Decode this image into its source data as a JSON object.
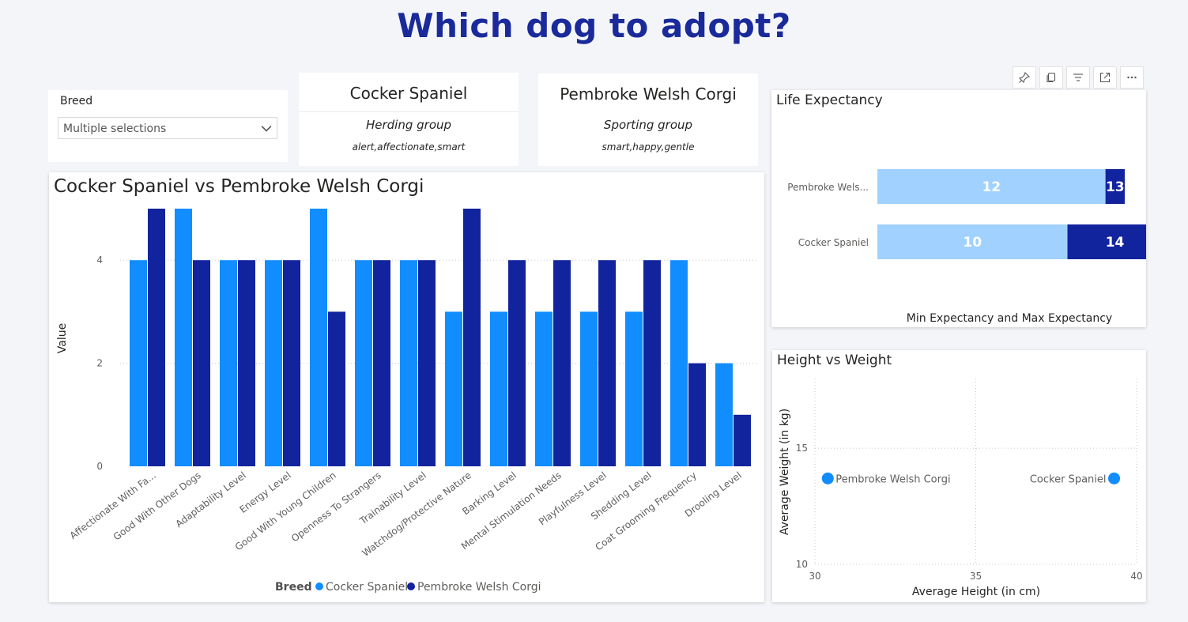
{
  "page": {
    "title": "Which dog to adopt?"
  },
  "slicer": {
    "label": "Breed",
    "value": "Multiple selections"
  },
  "breed_cards": [
    {
      "name": "Cocker Spaniel",
      "group": "Herding group",
      "traits": "alert,affectionate,smart"
    },
    {
      "name": "Pembroke Welsh Corgi",
      "group": "Sporting group",
      "traits": "smart,happy,gentle"
    }
  ],
  "toolbar": {
    "icons": [
      "pin-icon",
      "copy-icon",
      "filter-icon",
      "focus-mode-icon",
      "more-options-icon"
    ]
  },
  "colors": {
    "cocker": "#118dff",
    "corgi": "#12239e",
    "min_bar": "#a0d1ff",
    "max_bar": "#12239e",
    "title": "#1a2a9a"
  },
  "chart_data": [
    {
      "type": "bar",
      "title": "Cocker Spaniel vs Pembroke Welsh Corgi",
      "xlabel": "",
      "ylabel": "Value",
      "ylim": [
        0,
        5
      ],
      "yticks": [
        "0",
        "2",
        "4"
      ],
      "grid": true,
      "legend": {
        "title": "Breed",
        "placement": "bottom"
      },
      "categories": [
        "Affectionate With Fa...",
        "Good With Other Dogs",
        "Adaptability Level",
        "Energy Level",
        "Good With Young Children",
        "Openness To Strangers",
        "Trainability Level",
        "Watchdog/Protective Nature",
        "Barking Level",
        "Mental Stimulation Needs",
        "Playfulness Level",
        "Shedding Level",
        "Coat Grooming Frequency",
        "Drooling Level"
      ],
      "series": [
        {
          "name": "Cocker Spaniel",
          "values": [
            4,
            5,
            4,
            4,
            5,
            4,
            4,
            3,
            3,
            3,
            3,
            3,
            4,
            2
          ]
        },
        {
          "name": "Pembroke Welsh Corgi",
          "values": [
            5,
            4,
            4,
            4,
            3,
            4,
            4,
            5,
            4,
            4,
            4,
            4,
            2,
            1
          ]
        }
      ]
    },
    {
      "type": "bar",
      "orientation": "horizontal",
      "stacked": true,
      "title": "Life Expectancy",
      "xlabel": "Min Expectancy and Max Expectancy",
      "categories": [
        "Pembroke Wels...",
        "Cocker Spaniel"
      ],
      "series": [
        {
          "role": "min",
          "values": [
            12,
            10
          ],
          "labels": [
            "12",
            "10"
          ]
        },
        {
          "role": "max",
          "values": [
            13,
            14
          ],
          "labels": [
            "13",
            "14"
          ]
        }
      ]
    },
    {
      "type": "scatter",
      "title": "Height vs Weight",
      "xlabel": "Average Height (in cm)",
      "ylabel": "Average Weight (in kg)",
      "xlim": [
        30,
        40
      ],
      "ylim": [
        10,
        18
      ],
      "xticks": [
        "30",
        "35",
        "40"
      ],
      "yticks": [
        "10",
        "15"
      ],
      "grid": true,
      "points": [
        {
          "label": "Pembroke Welsh Corgi",
          "x": 30.4,
          "y": 13.7
        },
        {
          "label": "Cocker Spaniel",
          "x": 39.3,
          "y": 13.7
        }
      ]
    }
  ]
}
